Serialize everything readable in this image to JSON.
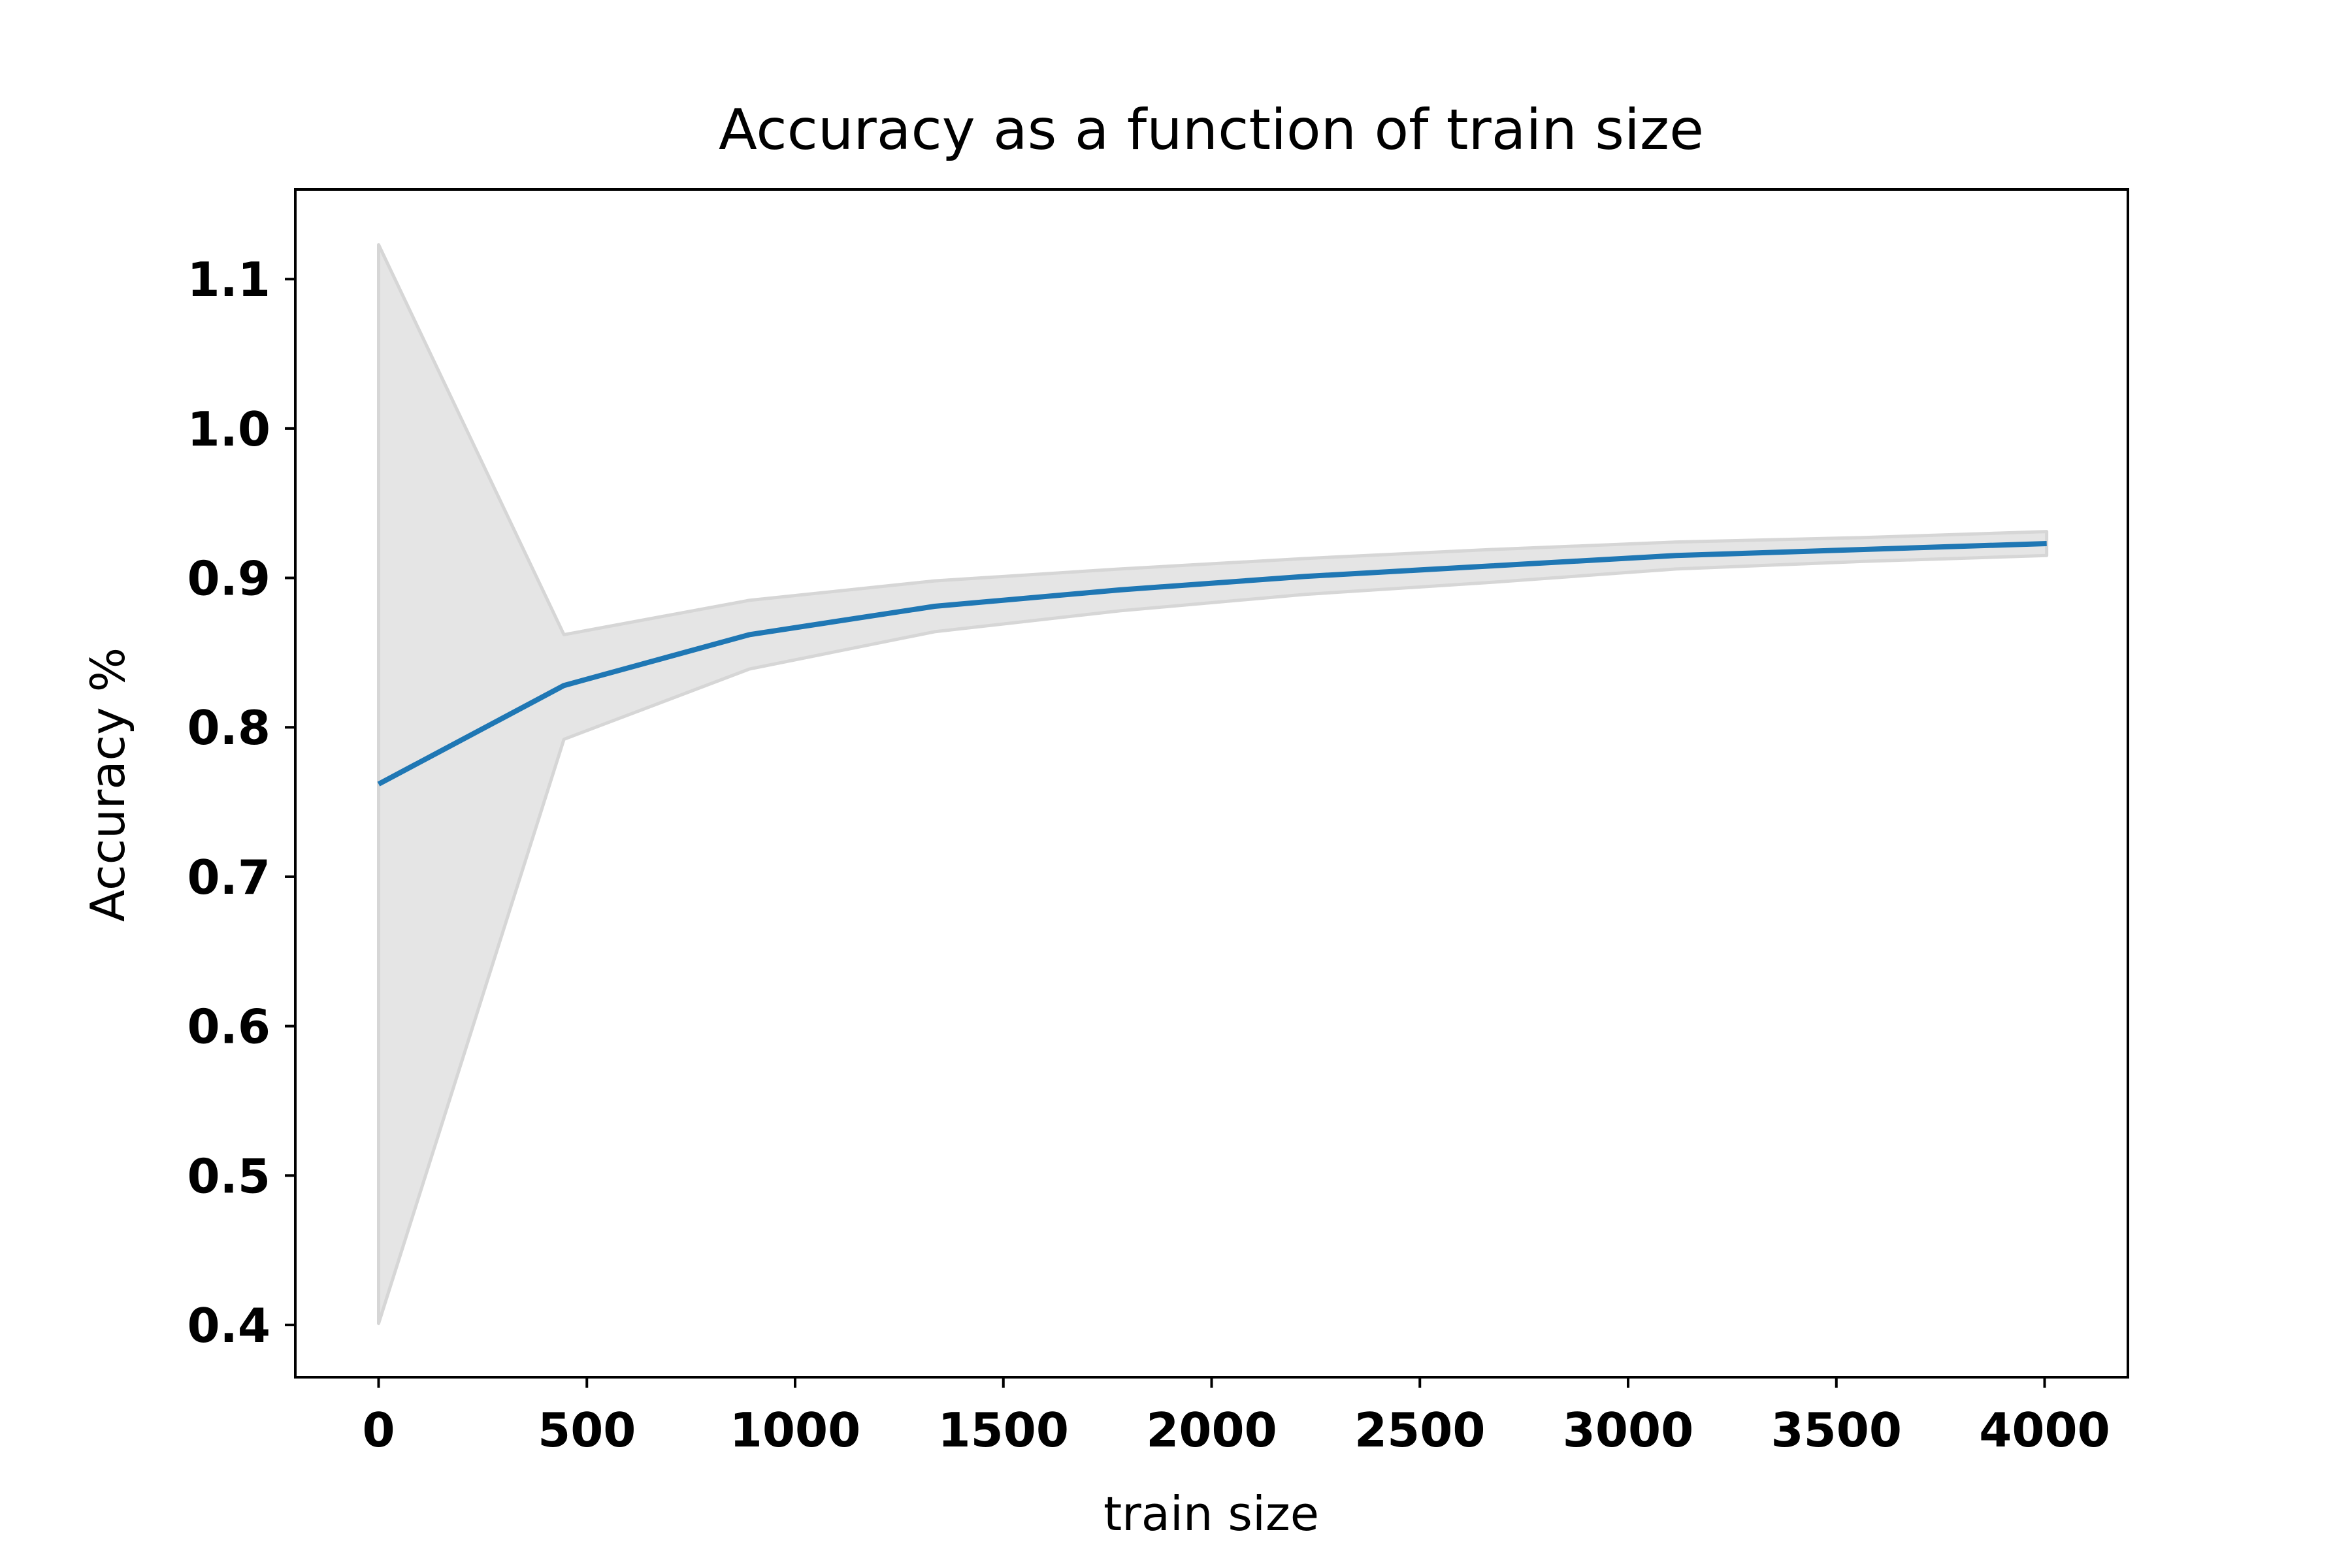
{
  "chart_data": {
    "type": "line",
    "title": "Accuracy as a function of train size",
    "xlabel": "train size",
    "ylabel": "Accuracy %",
    "x": [
      0,
      445,
      890,
      1335,
      1780,
      2225,
      2670,
      3115,
      3560,
      4005
    ],
    "series": [
      {
        "values": [
          0.762,
          0.828,
          0.862,
          0.881,
          0.892,
          0.901,
          0.908,
          0.915,
          0.919,
          0.923
        ],
        "color": "#1f77b4",
        "band_upper": [
          1.123,
          0.862,
          0.885,
          0.898,
          0.906,
          0.913,
          0.919,
          0.924,
          0.927,
          0.931
        ],
        "band_lower": [
          0.401,
          0.792,
          0.839,
          0.864,
          0.878,
          0.889,
          0.897,
          0.906,
          0.911,
          0.915
        ],
        "band_color": "#e5e5e5"
      }
    ],
    "xlim": [
      -200,
      4200
    ],
    "ylim": [
      0.365,
      1.16
    ],
    "x_ticks": [
      0,
      500,
      1000,
      1500,
      2000,
      2500,
      3000,
      3500,
      4000
    ],
    "x_tick_labels": [
      "0",
      "500",
      "1000",
      "1500",
      "2000",
      "2500",
      "3000",
      "3500",
      "4000"
    ],
    "y_ticks": [
      0.4,
      0.5,
      0.6,
      0.7,
      0.8,
      0.9,
      1.0,
      1.1
    ],
    "y_tick_labels": [
      "0.4",
      "0.5",
      "0.6",
      "0.7",
      "0.8",
      "0.9",
      "1.0",
      "1.1"
    ],
    "grid": false,
    "legend": "none"
  }
}
